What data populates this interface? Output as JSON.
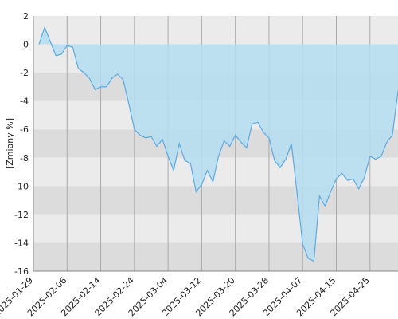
{
  "chart_data": {
    "type": "area",
    "y_label": "[Zmiany %]",
    "categories": [
      "2025-01-29",
      null,
      null,
      null,
      null,
      null,
      "2025-02-06",
      null,
      null,
      null,
      null,
      null,
      "2025-02-14",
      null,
      null,
      null,
      null,
      null,
      "2025-02-24",
      null,
      null,
      null,
      null,
      null,
      "2025-03-04",
      null,
      null,
      null,
      null,
      null,
      "2025-03-12",
      null,
      null,
      null,
      null,
      null,
      "2025-03-20",
      null,
      null,
      null,
      null,
      null,
      "2025-03-28",
      null,
      null,
      null,
      null,
      null,
      "2025-04-07",
      null,
      null,
      null,
      null,
      null,
      "2025-04-15",
      null,
      null,
      null,
      null,
      null,
      "2025-04-25",
      null,
      null,
      null,
      null,
      null
    ],
    "values": [
      null,
      0,
      1.2,
      0.2,
      -0.8,
      -0.7,
      -0.1,
      -0.2,
      -1.7,
      -2.0,
      -2.4,
      -3.2,
      -3.0,
      -3.0,
      -2.4,
      -2.1,
      -2.5,
      -4.2,
      -6.0,
      -6.4,
      -6.6,
      -6.5,
      -7.2,
      -6.7,
      -7.9,
      -8.9,
      -7.0,
      -8.2,
      -8.4,
      -10.4,
      -9.9,
      -8.9,
      -9.7,
      -7.9,
      -6.8,
      -7.2,
      -6.4,
      -6.9,
      -7.3,
      -5.6,
      -5.5,
      -6.2,
      -6.6,
      -8.2,
      -8.7,
      -8.1,
      -7.0,
      -10.5,
      -14.1,
      -15.1,
      -15.3,
      -10.7,
      -11.4,
      -10.4,
      -9.5,
      -9.1,
      -9.6,
      -9.5,
      -10.2,
      -9.4,
      -7.9,
      -8.1,
      -7.9,
      -6.9,
      -6.4,
      -3.3
    ],
    "color": "#5aaae6",
    "fill_color": "#b4def0",
    "ylim": [
      -16,
      2
    ],
    "yticks": [
      2,
      0,
      -2,
      -4,
      -6,
      -8,
      -10,
      -12,
      -14,
      -16
    ],
    "band_colors": [
      "#ebebeb",
      "#dcdcdc"
    ]
  }
}
